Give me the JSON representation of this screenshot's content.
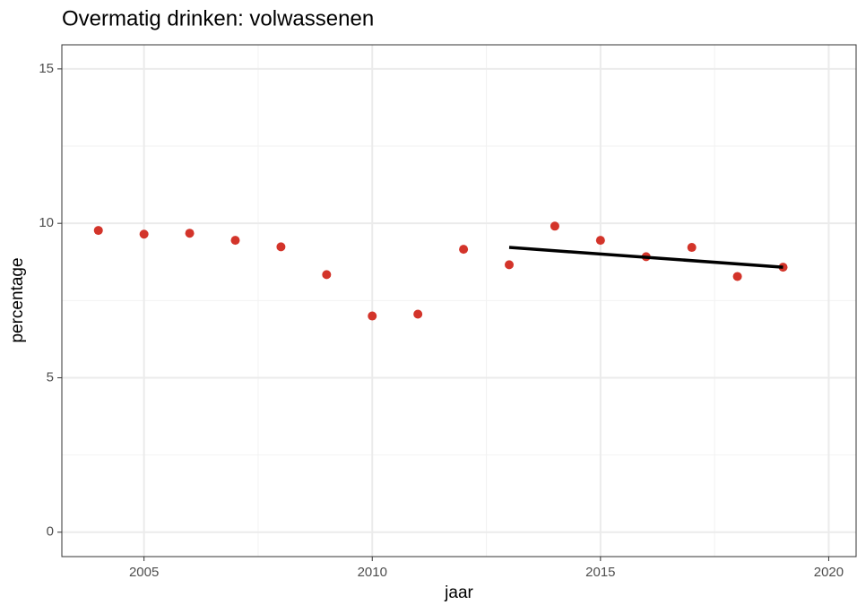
{
  "chart_data": {
    "type": "scatter",
    "title": "Overmatig drinken: volwassenen",
    "x_label": "jaar",
    "y_label": "percentage",
    "x": [
      2004,
      2005,
      2006,
      2007,
      2008,
      2009,
      2010,
      2011,
      2012,
      2013,
      2014,
      2015,
      2016,
      2017,
      2018,
      2019
    ],
    "values": [
      9.77,
      9.65,
      9.68,
      9.45,
      9.24,
      8.34,
      7.0,
      7.06,
      9.16,
      8.66,
      9.91,
      9.45,
      8.92,
      9.22,
      8.28,
      8.58
    ],
    "color": "#d3342a",
    "trend": {
      "x": [
        2013,
        2019
      ],
      "values": [
        9.22,
        8.58
      ],
      "color": "#000000"
    },
    "xlim": [
      2003.2,
      2020.6
    ],
    "xticks": [
      2005,
      2010,
      2015,
      2020
    ],
    "xminor": [
      2007.5,
      2012.5,
      2017.5
    ],
    "ylim": [
      -0.79,
      15.78
    ],
    "yticks": [
      0,
      5,
      10,
      15
    ],
    "yminor": [
      2.5,
      7.5,
      12.5
    ],
    "grid": true
  }
}
